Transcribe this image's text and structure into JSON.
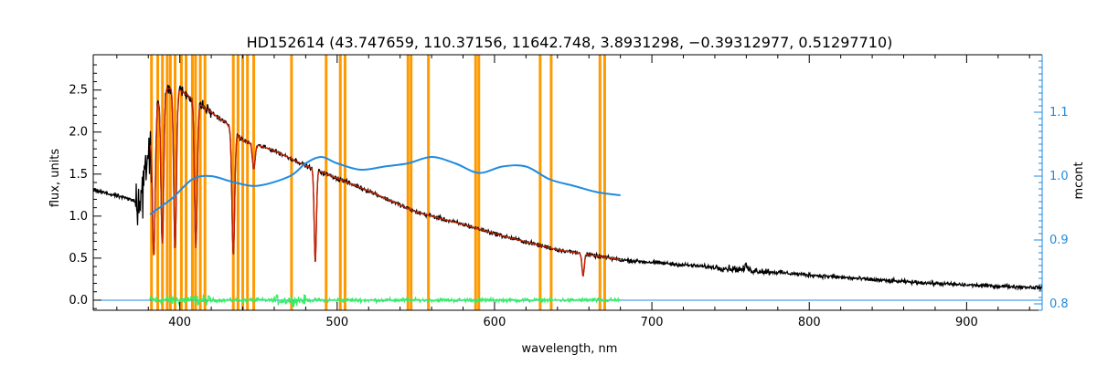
{
  "chart_data": {
    "type": "line",
    "title": "HD152614    (43.747659, 110.37156, 11642.748, 3.8931298, −0.39312977, 0.51297710)",
    "xlabel": "wavelength, nm",
    "ylabel": "flux, units",
    "ylabel_right": "mcont",
    "xlim": [
      345,
      948
    ],
    "ylim": [
      -0.12,
      2.92
    ],
    "ylim_right": [
      0.79,
      1.19
    ],
    "x_ticks": [
      400,
      500,
      600,
      700,
      800,
      900
    ],
    "y_ticks": [
      0.0,
      0.5,
      1.0,
      1.5,
      2.0,
      2.5
    ],
    "y_ticks_right": [
      0.8,
      0.9,
      1.0,
      1.1
    ],
    "grid": false,
    "colors": {
      "observed": "#000000",
      "model": "#cc2200",
      "continuum": "#1f8be0",
      "residuals": "#33ee66",
      "masks": "#ff9900",
      "right_axis": "#1f8be0"
    },
    "mask_lines": [
      382,
      386,
      389,
      392,
      394,
      397,
      401,
      404,
      408,
      410,
      413,
      416,
      434,
      437,
      440,
      443,
      447,
      471,
      493,
      502,
      505,
      545,
      547,
      558,
      588,
      590,
      629,
      636,
      667,
      670
    ],
    "observed_anchors": [
      [
        345,
        1.31
      ],
      [
        360,
        1.24
      ],
      [
        372,
        1.18
      ],
      [
        378,
        1.4
      ],
      [
        382,
        2.0
      ],
      [
        386,
        2.35
      ],
      [
        390,
        2.5
      ],
      [
        395,
        2.53
      ],
      [
        400,
        2.5
      ],
      [
        408,
        2.4
      ],
      [
        415,
        2.3
      ],
      [
        430,
        2.1
      ],
      [
        440,
        1.9
      ],
      [
        460,
        1.78
      ],
      [
        480,
        1.6
      ],
      [
        500,
        1.45
      ],
      [
        520,
        1.3
      ],
      [
        550,
        1.05
      ],
      [
        580,
        0.9
      ],
      [
        610,
        0.74
      ],
      [
        640,
        0.6
      ],
      [
        680,
        0.48
      ],
      [
        720,
        0.42
      ],
      [
        760,
        0.36
      ],
      [
        800,
        0.3
      ],
      [
        850,
        0.23
      ],
      [
        900,
        0.18
      ],
      [
        948,
        0.15
      ]
    ],
    "absorption_lines": [
      [
        383.5,
        1.6
      ],
      [
        388.9,
        1.8
      ],
      [
        397.0,
        1.9
      ],
      [
        410.2,
        1.75
      ],
      [
        434.0,
        1.5
      ],
      [
        447.0,
        0.3
      ],
      [
        486.1,
        1.1
      ],
      [
        656.3,
        0.25
      ],
      [
        760.0,
        -0.06
      ]
    ],
    "model_range": [
      381,
      680
    ],
    "continuum_points": [
      [
        381,
        0.94
      ],
      [
        395,
        0.965
      ],
      [
        408,
        0.995
      ],
      [
        420,
        1.0
      ],
      [
        435,
        0.99
      ],
      [
        450,
        0.985
      ],
      [
        470,
        1.0
      ],
      [
        480,
        1.02
      ],
      [
        490,
        1.03
      ],
      [
        500,
        1.02
      ],
      [
        515,
        1.01
      ],
      [
        530,
        1.015
      ],
      [
        545,
        1.02
      ],
      [
        560,
        1.03
      ],
      [
        575,
        1.02
      ],
      [
        590,
        1.005
      ],
      [
        605,
        1.015
      ],
      [
        620,
        1.015
      ],
      [
        635,
        0.995
      ],
      [
        650,
        0.985
      ],
      [
        665,
        0.975
      ],
      [
        680,
        0.97
      ]
    ],
    "residual_range": [
      381,
      680
    ]
  }
}
